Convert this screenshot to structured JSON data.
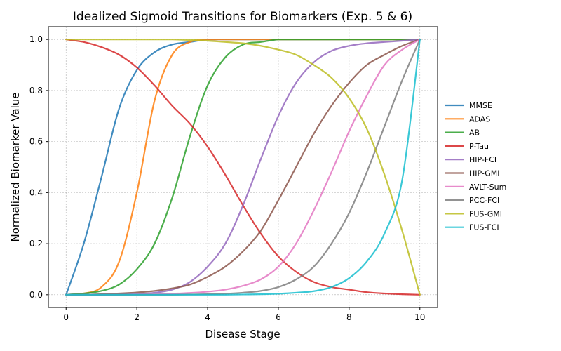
{
  "chart_data": {
    "type": "line",
    "title": "Idealized Sigmoid Transitions for Biomarkers (Exp. 5 & 6)",
    "xlabel": "Disease Stage",
    "ylabel": "Normalized Biomarker Value",
    "xlim": [
      -0.5,
      10.5
    ],
    "ylim": [
      -0.05,
      1.05
    ],
    "xticks": [
      0,
      2,
      4,
      6,
      8,
      10
    ],
    "yticks": [
      0.0,
      0.2,
      0.4,
      0.6,
      0.8,
      1.0
    ],
    "xtick_labels": [
      "0",
      "2",
      "4",
      "6",
      "8",
      "10"
    ],
    "ytick_labels": [
      "0.0",
      "0.2",
      "0.4",
      "0.6",
      "0.8",
      "1.0"
    ],
    "grid": true,
    "legend_position": "right",
    "x": [
      0,
      0.5,
      1,
      1.5,
      2,
      2.5,
      3,
      3.5,
      4,
      4.5,
      5,
      5.5,
      6,
      6.5,
      7,
      7.5,
      8,
      8.5,
      9,
      9.5,
      10
    ],
    "series": [
      {
        "name": "MMSE",
        "color": "#1f77b4",
        "values": [
          0.0,
          0.2,
          0.46,
          0.73,
          0.88,
          0.95,
          0.98,
          0.99,
          1.0,
          1.0,
          1.0,
          1.0,
          1.0,
          1.0,
          1.0,
          1.0,
          1.0,
          1.0,
          1.0,
          1.0,
          1.0
        ]
      },
      {
        "name": "ADAS",
        "color": "#ff7f0e",
        "values": [
          0.0,
          0.005,
          0.03,
          0.13,
          0.4,
          0.76,
          0.94,
          0.99,
          1.0,
          1.0,
          1.0,
          1.0,
          1.0,
          1.0,
          1.0,
          1.0,
          1.0,
          1.0,
          1.0,
          1.0,
          1.0
        ]
      },
      {
        "name": "AB",
        "color": "#2ca02c",
        "values": [
          0.0,
          0.005,
          0.015,
          0.04,
          0.1,
          0.2,
          0.38,
          0.62,
          0.82,
          0.93,
          0.98,
          0.99,
          1.0,
          1.0,
          1.0,
          1.0,
          1.0,
          1.0,
          1.0,
          1.0,
          1.0
        ]
      },
      {
        "name": "P-Tau",
        "color": "#d62728",
        "values": [
          1.0,
          0.99,
          0.97,
          0.94,
          0.89,
          0.82,
          0.74,
          0.67,
          0.58,
          0.47,
          0.35,
          0.24,
          0.15,
          0.09,
          0.05,
          0.03,
          0.02,
          0.01,
          0.005,
          0.002,
          0.0
        ]
      },
      {
        "name": "HIP-FCI",
        "color": "#9467bd",
        "values": [
          0.0,
          0.0,
          0.0,
          0.001,
          0.003,
          0.008,
          0.02,
          0.05,
          0.11,
          0.2,
          0.35,
          0.53,
          0.7,
          0.83,
          0.91,
          0.955,
          0.975,
          0.985,
          0.99,
          0.995,
          1.0
        ]
      },
      {
        "name": "HIP-GMI",
        "color": "#8c564b",
        "values": [
          0.0,
          0.0,
          0.002,
          0.005,
          0.009,
          0.015,
          0.025,
          0.04,
          0.07,
          0.11,
          0.17,
          0.25,
          0.37,
          0.5,
          0.63,
          0.74,
          0.83,
          0.9,
          0.94,
          0.975,
          1.0
        ]
      },
      {
        "name": "AVLT-Sum",
        "color": "#e377c2",
        "values": [
          0.0,
          0.0,
          0.0,
          0.0,
          0.001,
          0.002,
          0.004,
          0.007,
          0.012,
          0.02,
          0.035,
          0.06,
          0.11,
          0.2,
          0.33,
          0.48,
          0.64,
          0.78,
          0.9,
          0.96,
          1.0
        ]
      },
      {
        "name": "PCC-FCI",
        "color": "#7f7f7f",
        "values": [
          0.0,
          0.0,
          0.0,
          0.0,
          0.0,
          0.0,
          0.0,
          0.001,
          0.002,
          0.004,
          0.008,
          0.015,
          0.03,
          0.06,
          0.11,
          0.2,
          0.32,
          0.48,
          0.66,
          0.84,
          1.0
        ]
      },
      {
        "name": "FUS-GMI",
        "color": "#bcbd22",
        "values": [
          1.0,
          1.0,
          1.0,
          1.0,
          1.0,
          1.0,
          1.0,
          0.998,
          0.995,
          0.99,
          0.985,
          0.975,
          0.96,
          0.94,
          0.9,
          0.85,
          0.77,
          0.65,
          0.47,
          0.25,
          0.0
        ]
      },
      {
        "name": "FUS-FCI",
        "color": "#17becf",
        "values": [
          0.0,
          0.0,
          0.0,
          0.0,
          0.0,
          0.0,
          0.0,
          0.0,
          0.0,
          0.0,
          0.001,
          0.002,
          0.004,
          0.008,
          0.014,
          0.03,
          0.065,
          0.13,
          0.24,
          0.45,
          1.0
        ]
      }
    ]
  }
}
